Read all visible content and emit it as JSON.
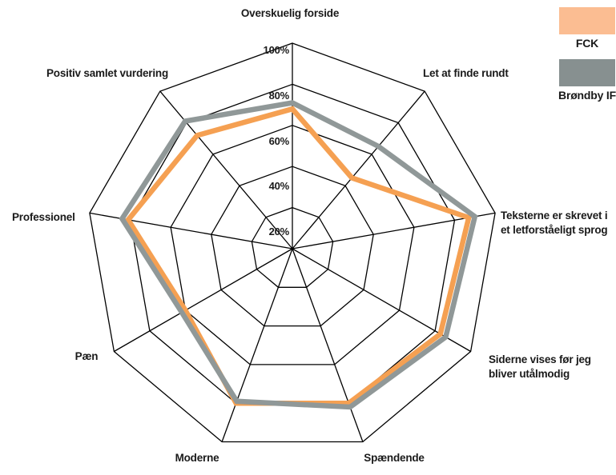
{
  "chart_data": {
    "type": "radar",
    "categories": [
      "Overskuelig forside",
      "Let at finde rundt",
      "Teksterne er skrevet i\net letforståeligt sprog",
      "Siderne vises før jeg\nbliver utålmodig",
      "Spændende",
      "Moderne",
      "Pæn",
      "Professionel",
      "Positiv samlet vurdering"
    ],
    "series": [
      {
        "name": "FCK",
        "color": "#F5A052",
        "values": [
          68,
          45,
          87,
          83,
          80,
          80,
          60,
          81,
          72
        ]
      },
      {
        "name": "Brøndby IF",
        "color": "#909898",
        "values": [
          71,
          65,
          90,
          86,
          82,
          79,
          62,
          84,
          81
        ]
      }
    ],
    "ticks": [
      "20%",
      "40%",
      "60%",
      "80%",
      "100%"
    ],
    "rmin": 0,
    "rmax": 100,
    "grid": "polygon-rings",
    "gridline_color": "#000000",
    "legend_position": "top-right"
  },
  "legend": {
    "items": [
      {
        "label": "FCK",
        "swatch_color": "#FBBD92"
      },
      {
        "label": "Brøndby IF",
        "swatch_color": "#879090"
      }
    ]
  }
}
